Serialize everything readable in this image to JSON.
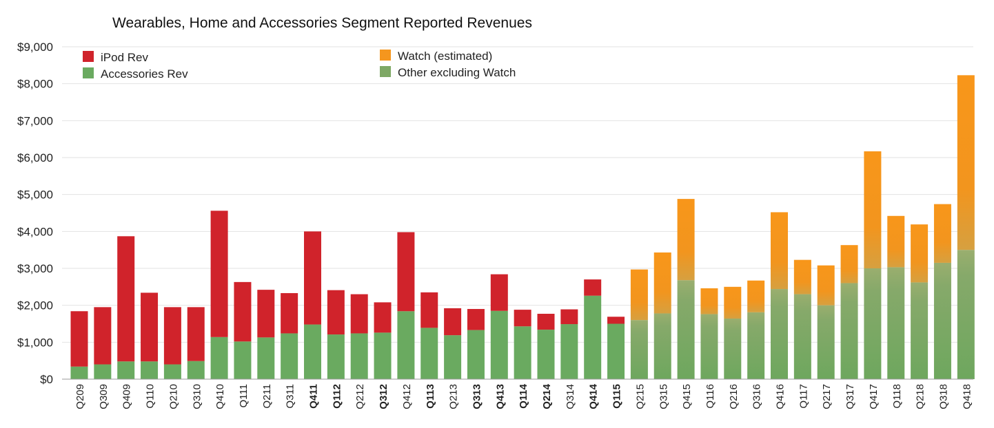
{
  "chart_data": {
    "type": "bar",
    "stacked": true,
    "title": "Wearables, Home and Accessories Segment Reported Revenues",
    "xlabel": "",
    "ylabel": "",
    "ylim": [
      0,
      9000
    ],
    "yticks": [
      0,
      1000,
      2000,
      3000,
      4000,
      5000,
      6000,
      7000,
      8000,
      9000
    ],
    "ytick_labels": [
      "$0",
      "$1,000",
      "$2,000",
      "$3,000",
      "$4,000",
      "$5,000",
      "$6,000",
      "$7,000",
      "$8,000",
      "$9,000"
    ],
    "grid": true,
    "legend_placement": "top-left",
    "categories": [
      "Q209",
      "Q309",
      "Q409",
      "Q110",
      "Q210",
      "Q310",
      "Q410",
      "Q111",
      "Q211",
      "Q311",
      "Q411",
      "Q112",
      "Q212",
      "Q312",
      "Q412",
      "Q113",
      "Q213",
      "Q313",
      "Q413",
      "Q114",
      "Q214",
      "Q314",
      "Q414",
      "Q115",
      "Q215",
      "Q315",
      "Q415",
      "Q116",
      "Q216",
      "Q316",
      "Q416",
      "Q117",
      "Q217",
      "Q317",
      "Q417",
      "Q118",
      "Q218",
      "Q318",
      "Q418"
    ],
    "bold_categories": [
      "Q411",
      "Q112",
      "Q312",
      "Q113",
      "Q313",
      "Q413",
      "Q114",
      "Q214",
      "Q414",
      "Q115"
    ],
    "series": [
      {
        "name": "Accessories Rev",
        "color": "#6aaa60",
        "values": [
          340,
          400,
          480,
          480,
          400,
          490,
          1140,
          1020,
          1130,
          1240,
          1480,
          1210,
          1240,
          1260,
          1840,
          1390,
          1190,
          1330,
          1850,
          1430,
          1340,
          1490,
          2260,
          1500,
          null,
          null,
          null,
          null,
          null,
          null,
          null,
          null,
          null,
          null,
          null,
          null,
          null,
          null,
          null
        ]
      },
      {
        "name": "iPod Rev",
        "color": "#d0232b",
        "values": [
          1500,
          1550,
          3390,
          1860,
          1550,
          1460,
          3420,
          1610,
          1290,
          1090,
          2520,
          1200,
          1060,
          820,
          2140,
          960,
          730,
          570,
          990,
          450,
          430,
          400,
          440,
          190,
          null,
          null,
          null,
          null,
          null,
          null,
          null,
          null,
          null,
          null,
          null,
          null,
          null,
          null,
          null
        ]
      },
      {
        "name": "Other excluding Watch",
        "color": "#7ea865",
        "values": [
          null,
          null,
          null,
          null,
          null,
          null,
          null,
          null,
          null,
          null,
          null,
          null,
          null,
          null,
          null,
          null,
          null,
          null,
          null,
          null,
          null,
          null,
          null,
          null,
          1600,
          1780,
          2680,
          1760,
          1640,
          1810,
          2440,
          2300,
          2000,
          2600,
          3000,
          3030,
          2620,
          3150,
          3500
        ]
      },
      {
        "name": "Watch (estimated)",
        "color": "#f5961e",
        "values": [
          null,
          null,
          null,
          null,
          null,
          null,
          null,
          null,
          null,
          null,
          null,
          null,
          null,
          null,
          null,
          null,
          null,
          null,
          null,
          null,
          null,
          null,
          null,
          null,
          1370,
          1650,
          2200,
          700,
          860,
          860,
          2080,
          930,
          1080,
          1030,
          3170,
          1390,
          1570,
          1590,
          4730
        ]
      }
    ]
  },
  "legend": {
    "left": [
      {
        "label": "iPod Rev",
        "color": "#d0232b"
      },
      {
        "label": "Accessories Rev",
        "color": "#6aaa60"
      }
    ],
    "right": [
      {
        "label": "Watch (estimated)",
        "color": "#f5961e"
      },
      {
        "label": "Other excluding Watch",
        "color": "#7ea865"
      }
    ]
  }
}
